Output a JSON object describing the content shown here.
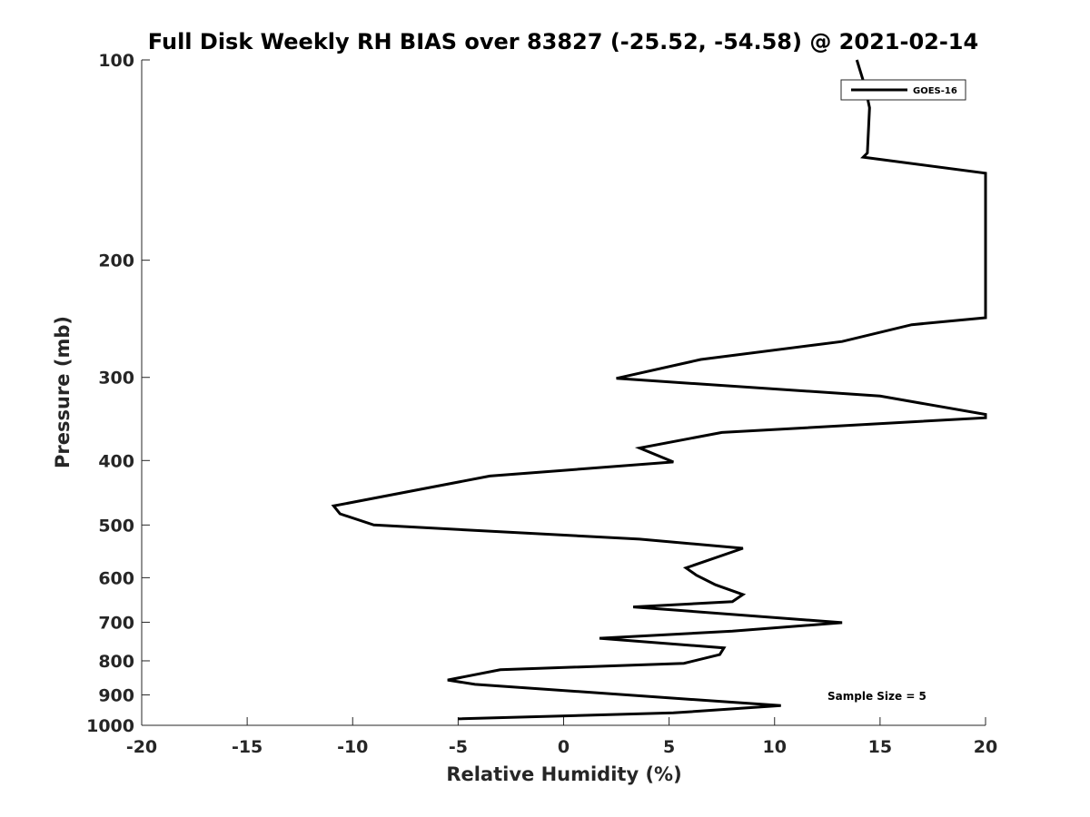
{
  "chart_data": {
    "type": "line",
    "title": "Full Disk Weekly RH BIAS over 83827 (-25.52, -54.58) @ 2021-02-14",
    "xlabel": "Relative Humidity (%)",
    "ylabel": "Pressure (mb)",
    "xlim": [
      -20,
      20
    ],
    "ylim": [
      100,
      1000
    ],
    "y_scale": "log",
    "y_reversed": true,
    "grid": false,
    "legend_position": "top-right",
    "x_ticks": [
      -20,
      -15,
      -10,
      -5,
      0,
      5,
      10,
      15,
      20
    ],
    "x_tick_labels": [
      "-20",
      "-15",
      "-10",
      "-5",
      "0",
      "5",
      "10",
      "15",
      "20"
    ],
    "y_ticks": [
      100,
      200,
      300,
      400,
      500,
      600,
      700,
      800,
      900,
      1000
    ],
    "y_tick_labels": [
      "100",
      "200",
      "300",
      "400",
      "500",
      "600",
      "700",
      "800",
      "900",
      "1000"
    ],
    "series": [
      {
        "name": "GOES-16",
        "color": "#000000",
        "points": [
          [
            13.9,
            100
          ],
          [
            14.3,
            110
          ],
          [
            14.5,
            118
          ],
          [
            14.4,
            138
          ],
          [
            14.2,
            140
          ],
          [
            20,
            148
          ],
          [
            20,
            244
          ],
          [
            16.5,
            250
          ],
          [
            13.2,
            265
          ],
          [
            6.5,
            282
          ],
          [
            2.5,
            301
          ],
          [
            15,
            320
          ],
          [
            20,
            341
          ],
          [
            20,
            345
          ],
          [
            7.5,
            363
          ],
          [
            3.6,
            383
          ],
          [
            5.2,
            402
          ],
          [
            -3.5,
            422
          ],
          [
            -10.9,
            468
          ],
          [
            -10.6,
            481
          ],
          [
            -9,
            500
          ],
          [
            3.6,
            525
          ],
          [
            8.5,
            542
          ],
          [
            5.8,
            580
          ],
          [
            6.3,
            595
          ],
          [
            7.2,
            615
          ],
          [
            8.5,
            636
          ],
          [
            8.0,
            652
          ],
          [
            3.3,
            664
          ],
          [
            13.2,
            701
          ],
          [
            8.0,
            722
          ],
          [
            1.7,
            740
          ],
          [
            7.6,
            765
          ],
          [
            7.4,
            783
          ],
          [
            5.7,
            807
          ],
          [
            -3.0,
            825
          ],
          [
            -5.5,
            855
          ],
          [
            -4.2,
            868
          ],
          [
            3.0,
            900
          ],
          [
            10.3,
            934
          ],
          [
            5.2,
            958
          ],
          [
            -5.0,
            978
          ]
        ]
      }
    ],
    "annotations": [
      "Sample Size = 5"
    ]
  }
}
